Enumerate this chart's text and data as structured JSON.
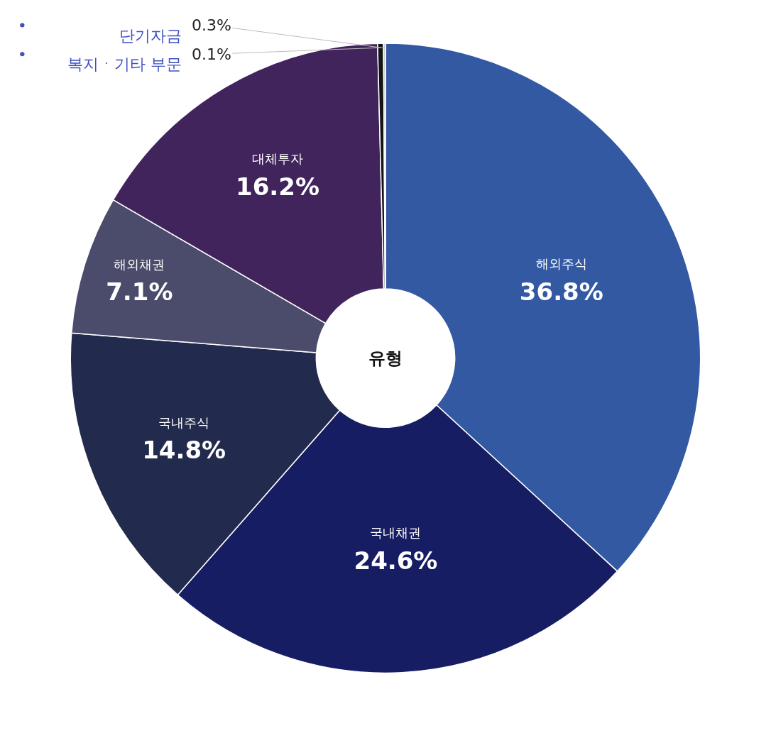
{
  "chart_data": {
    "type": "donut",
    "title": "유형",
    "categories": [
      "해외주식",
      "국내채권",
      "국내주식",
      "해외채권",
      "대체투자",
      "단기자금",
      "복지ㆍ기타 부문"
    ],
    "values": [
      36.8,
      24.6,
      14.8,
      7.1,
      16.2,
      0.3,
      0.1
    ],
    "colors": [
      "#3359a3",
      "#171d63",
      "#222b4d",
      "#4b4b6b",
      "#42245c",
      "#151515",
      "#c8c8c8"
    ],
    "value_labels": [
      "36.8%",
      "24.6%",
      "14.8%",
      "7.1%",
      "16.2%",
      "0.3%",
      "0.1%"
    ],
    "legend": false
  }
}
